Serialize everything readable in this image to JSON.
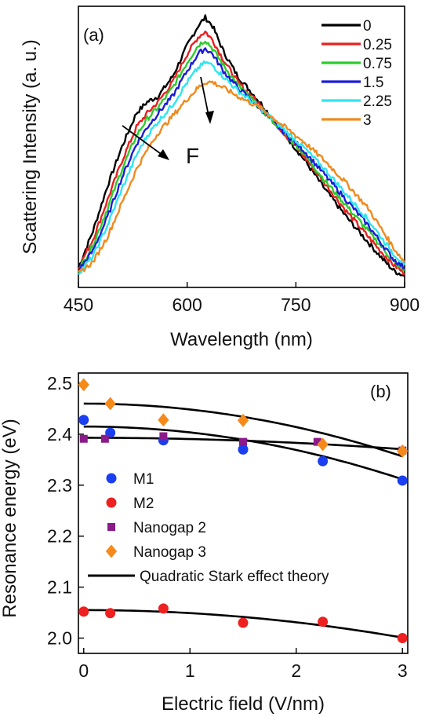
{
  "chart_data": [
    {
      "type": "line",
      "panel_label": "(a)",
      "xlabel": "Wavelength (nm)",
      "ylabel": "Scattering Intensity (a. u.)",
      "xlim": [
        450,
        900
      ],
      "ylim": [
        0,
        1
      ],
      "x_ticks": [
        450,
        600,
        750,
        900
      ],
      "y_ticks_visible": false,
      "annotation": "F",
      "legend_position": "top-right",
      "series": [
        {
          "name": "0",
          "color": "#000000",
          "x": [
            450,
            470,
            490,
            510,
            530,
            545,
            560,
            580,
            600,
            615,
            625,
            635,
            650,
            670,
            700,
            730,
            760,
            790,
            820,
            850,
            870,
            885,
            900
          ],
          "y": [
            0.07,
            0.2,
            0.36,
            0.5,
            0.62,
            0.66,
            0.68,
            0.75,
            0.86,
            0.93,
            0.96,
            0.93,
            0.84,
            0.75,
            0.66,
            0.56,
            0.46,
            0.35,
            0.25,
            0.16,
            0.1,
            0.06,
            0.04
          ]
        },
        {
          "name": "0.25",
          "color": "#e82020",
          "x": [
            450,
            470,
            490,
            510,
            530,
            545,
            560,
            580,
            600,
            615,
            625,
            635,
            650,
            670,
            700,
            730,
            760,
            790,
            820,
            850,
            870,
            885,
            900
          ],
          "y": [
            0.07,
            0.17,
            0.31,
            0.45,
            0.57,
            0.62,
            0.66,
            0.73,
            0.83,
            0.89,
            0.91,
            0.88,
            0.81,
            0.73,
            0.65,
            0.56,
            0.47,
            0.37,
            0.27,
            0.18,
            0.12,
            0.08,
            0.05
          ]
        },
        {
          "name": "0.75",
          "color": "#2ccc2c",
          "x": [
            450,
            470,
            490,
            510,
            530,
            545,
            560,
            580,
            600,
            615,
            625,
            635,
            650,
            670,
            700,
            730,
            760,
            790,
            820,
            850,
            870,
            885,
            900
          ],
          "y": [
            0.06,
            0.15,
            0.28,
            0.42,
            0.54,
            0.6,
            0.64,
            0.71,
            0.8,
            0.86,
            0.88,
            0.85,
            0.79,
            0.72,
            0.64,
            0.56,
            0.48,
            0.38,
            0.29,
            0.2,
            0.14,
            0.09,
            0.06
          ]
        },
        {
          "name": "1.5",
          "color": "#1c1cd8",
          "x": [
            450,
            470,
            490,
            510,
            530,
            545,
            560,
            580,
            600,
            615,
            625,
            635,
            650,
            670,
            700,
            730,
            760,
            790,
            820,
            850,
            870,
            885,
            900
          ],
          "y": [
            0.06,
            0.13,
            0.25,
            0.39,
            0.51,
            0.57,
            0.62,
            0.68,
            0.77,
            0.83,
            0.85,
            0.83,
            0.77,
            0.71,
            0.64,
            0.56,
            0.49,
            0.4,
            0.31,
            0.22,
            0.15,
            0.1,
            0.07
          ]
        },
        {
          "name": "2.25",
          "color": "#2ee6ee",
          "x": [
            450,
            470,
            490,
            510,
            530,
            545,
            560,
            580,
            600,
            615,
            625,
            635,
            650,
            670,
            700,
            730,
            760,
            790,
            820,
            850,
            870,
            885,
            900
          ],
          "y": [
            0.05,
            0.11,
            0.22,
            0.35,
            0.47,
            0.54,
            0.59,
            0.65,
            0.73,
            0.78,
            0.8,
            0.79,
            0.75,
            0.7,
            0.64,
            0.57,
            0.5,
            0.42,
            0.33,
            0.24,
            0.17,
            0.12,
            0.08
          ]
        },
        {
          "name": "3",
          "color": "#f08a1e",
          "x": [
            450,
            470,
            490,
            510,
            530,
            545,
            560,
            580,
            600,
            615,
            625,
            635,
            650,
            670,
            700,
            730,
            760,
            790,
            820,
            850,
            870,
            885,
            900
          ],
          "y": [
            0.05,
            0.09,
            0.18,
            0.3,
            0.42,
            0.49,
            0.55,
            0.61,
            0.67,
            0.71,
            0.73,
            0.73,
            0.71,
            0.68,
            0.64,
            0.58,
            0.52,
            0.45,
            0.37,
            0.28,
            0.2,
            0.14,
            0.09
          ]
        }
      ]
    },
    {
      "type": "scatter",
      "panel_label": "(b)",
      "xlabel": "Electric field (V/nm)",
      "ylabel": "Resonance energy (eV)",
      "xlim": [
        -0.05,
        3.05
      ],
      "ylim": [
        1.97,
        2.52
      ],
      "x_ticks": [
        0,
        1,
        2,
        3
      ],
      "y_ticks": [
        2.0,
        2.1,
        2.2,
        2.3,
        2.4,
        2.5
      ],
      "legend_position": "left-middle",
      "series": [
        {
          "name": "M1",
          "marker": "circle",
          "color": "#1a3ff0",
          "x": [
            0,
            0.25,
            0.75,
            1.5,
            2.25,
            3.0
          ],
          "y": [
            2.428,
            2.403,
            2.388,
            2.37,
            2.347,
            2.309
          ]
        },
        {
          "name": "M2",
          "marker": "circle",
          "color": "#ee2020",
          "x": [
            0,
            0.25,
            0.75,
            1.5,
            2.25,
            3.0
          ],
          "y": [
            2.052,
            2.049,
            2.058,
            2.03,
            2.032,
            2.0
          ]
        },
        {
          "name": "Nanogap 2",
          "marker": "square",
          "color": "#8b1a8b",
          "x": [
            0,
            0.2,
            0.75,
            1.5,
            2.2,
            3.0
          ],
          "y": [
            2.391,
            2.391,
            2.396,
            2.385,
            2.385,
            2.368
          ]
        },
        {
          "name": "Nanogap 3",
          "marker": "diamond",
          "color": "#f58a1a",
          "x": [
            0,
            0.25,
            0.75,
            1.5,
            2.25,
            3.0
          ],
          "y": [
            2.497,
            2.46,
            2.428,
            2.427,
            2.38,
            2.367
          ]
        },
        {
          "name": "Quadratic Stark effect theory",
          "marker": "line",
          "color": "#000000",
          "fits": [
            {
              "a": 2.46,
              "b": -0.0115,
              "x_range": [
                0,
                3.0
              ]
            },
            {
              "a": 2.415,
              "b": -0.0115,
              "x_range": [
                0,
                3.0
              ]
            },
            {
              "a": 2.393,
              "b": -0.0025,
              "x_range": [
                0,
                3.0
              ]
            },
            {
              "a": 2.055,
              "b": -0.006,
              "x_range": [
                0,
                3.0
              ]
            }
          ]
        }
      ]
    }
  ]
}
